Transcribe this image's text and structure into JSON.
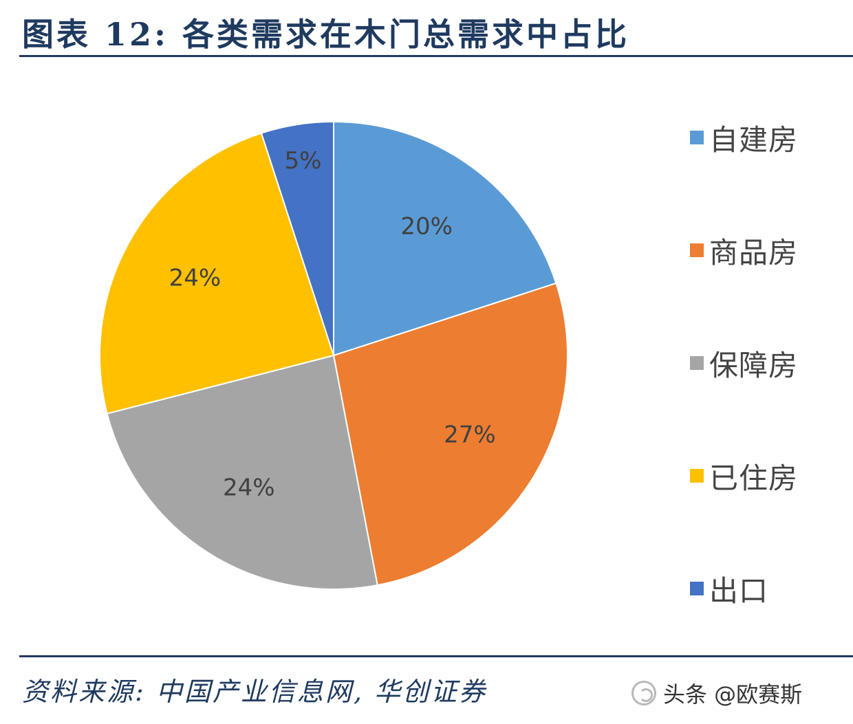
{
  "title": "图表 12: 各类需求在木门总需求中占比",
  "source": "资料来源: 中国产业信息网, 华创证券",
  "watermark": "头条 @欧赛斯",
  "chart_data": {
    "type": "pie",
    "categories": [
      "自建房",
      "商品房",
      "保障房",
      "已住房",
      "出口"
    ],
    "values": [
      20,
      27,
      24,
      24,
      5
    ],
    "data_labels": [
      "20%",
      "27%",
      "24%",
      "24%",
      "5%"
    ],
    "colors": [
      "#5b9bd5",
      "#ed7d31",
      "#a5a5a5",
      "#ffc000",
      "#4472c4"
    ],
    "start_angle_deg": 0,
    "direction": "clockwise",
    "legend_position": "right"
  }
}
